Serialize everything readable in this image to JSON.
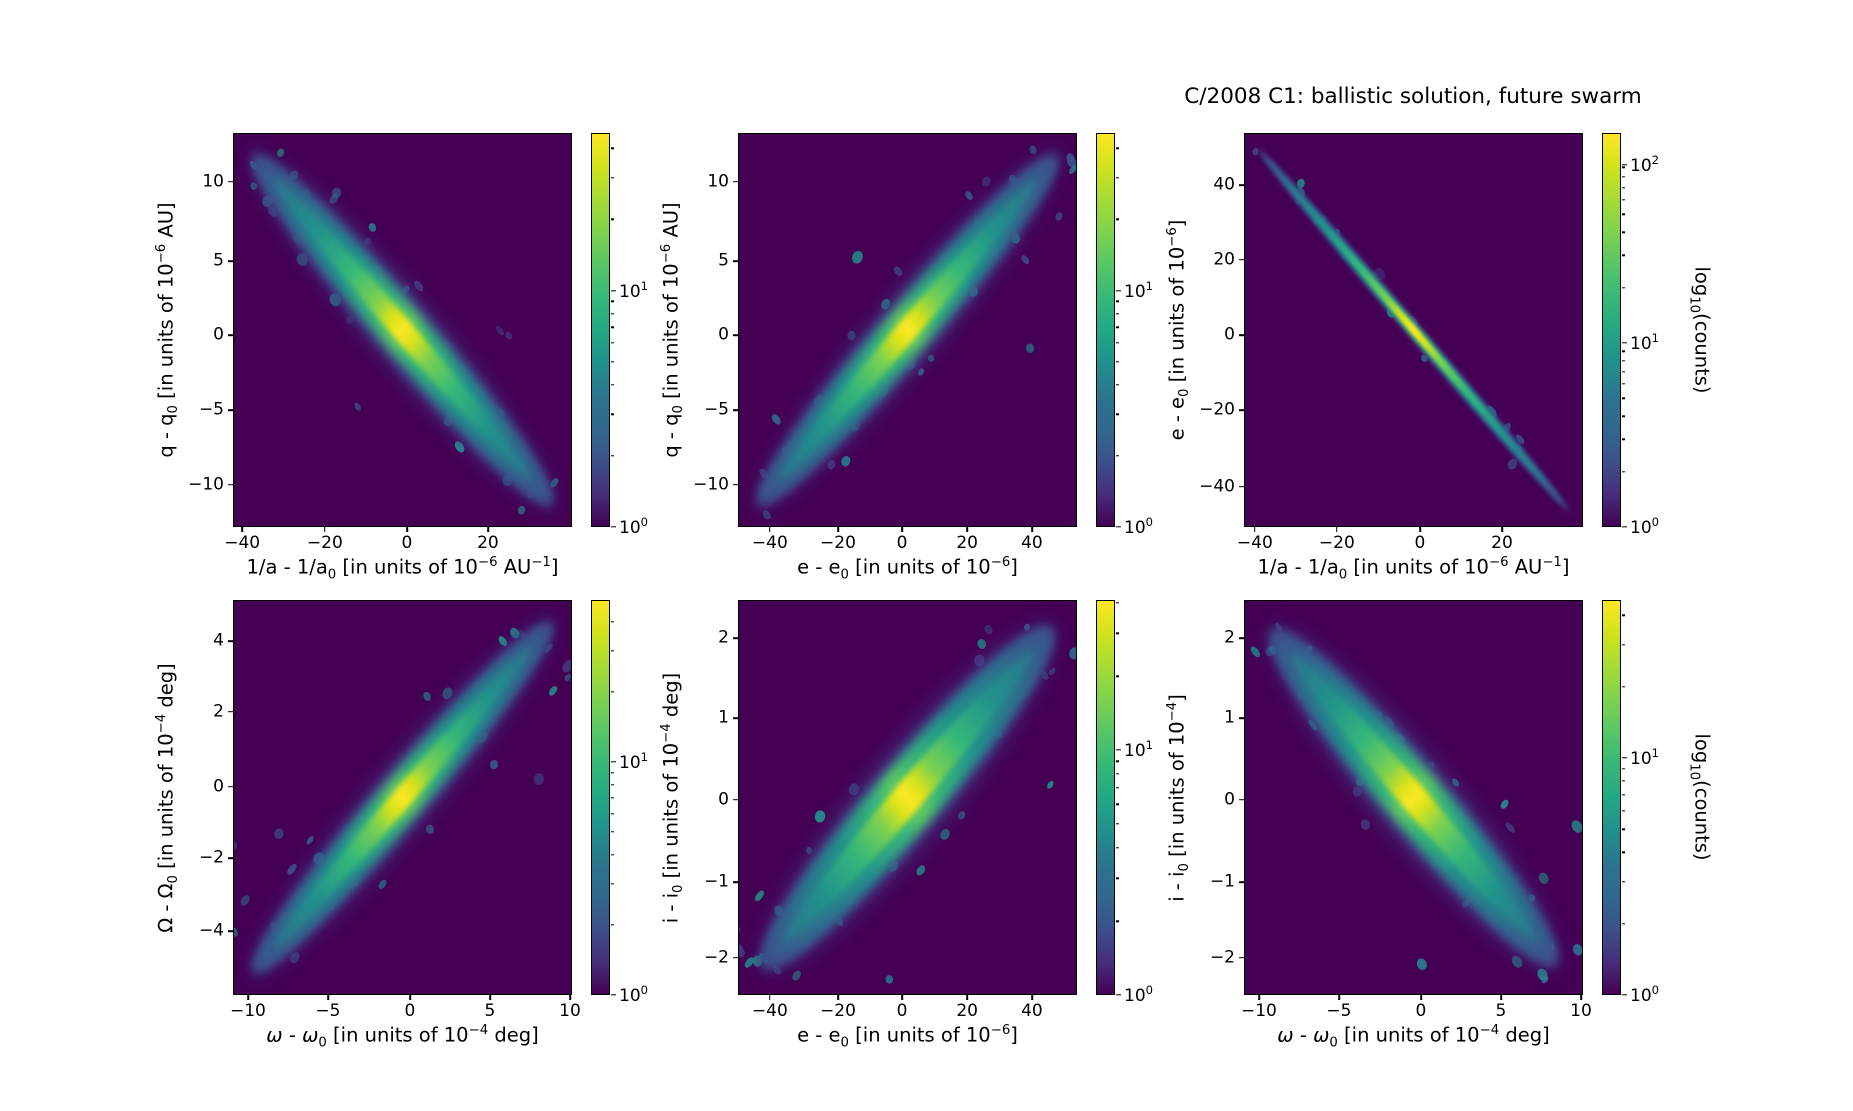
{
  "figure": {
    "title": "C/2008 C1: ballistic solution, future swarm",
    "background_color": "#ffffff",
    "plot_background_color": "#440154",
    "colormap": "viridis",
    "colorbar_label": "log10(counts)",
    "colorbar_label_parts": [
      {
        "t": "log"
      },
      {
        "s": "10"
      },
      {
        "t": "(counts)"
      }
    ]
  },
  "chart_data": {
    "type": "hexbin",
    "layout": "2x3 grid of hexbin density panels, each with its own vertical viridis colorbar",
    "count_scale": "log10",
    "colorbar_label": "log10(counts)",
    "panels": [
      {
        "name": "q-q0 vs 1/a-1/a0",
        "row": 0,
        "col": 0,
        "xlabel": "1/a - 1/a0 [in units of 10^-6 AU^-1]",
        "ylabel": "q - q0 [in units of 10^-6 AU]",
        "xlabel_parts": [
          {
            "t": "1/a - 1/a"
          },
          {
            "s": "0"
          },
          {
            "t": " [in units of 10"
          },
          {
            "p": "−6"
          },
          {
            "t": " AU"
          },
          {
            "p": "−1"
          },
          {
            "t": "]"
          }
        ],
        "ylabel_parts": [
          {
            "t": "q - q"
          },
          {
            "s": "0"
          },
          {
            "t": " [in units of 10"
          },
          {
            "p": "−6"
          },
          {
            "t": " AU]"
          }
        ],
        "xlim": [
          -42,
          40
        ],
        "ylim": [
          -13,
          13
        ],
        "xticks": [
          {
            "v": "−40",
            "f": 0.027
          },
          {
            "v": "−20",
            "f": 0.271
          },
          {
            "v": "0",
            "f": 0.513
          },
          {
            "v": "20",
            "f": 0.752
          }
        ],
        "yticks": [
          {
            "v": "10",
            "f": 0.124
          },
          {
            "v": "5",
            "f": 0.325
          },
          {
            "v": "0",
            "f": 0.513
          },
          {
            "v": "−5",
            "f": 0.703
          },
          {
            "v": "−10",
            "f": 0.893
          }
        ],
        "correlation": "negative",
        "max_count_est": 50,
        "band": {
          "angle": 45,
          "len": 64,
          "core": 3.0,
          "mid": 6.0,
          "outer": 10,
          "speckles": 55,
          "seed": 7,
          "blur": 1
        },
        "colorbar": {
          "ticks": [
            {
              "base": "10",
              "exp": "1",
              "f": 0.4
            },
            {
              "base": "10",
              "exp": "0",
              "f": 1.0
            }
          ]
        }
      },
      {
        "name": "q-q0 vs e-e0",
        "row": 0,
        "col": 1,
        "xlabel": "e - e0 [in units of 10^-6]",
        "ylabel": "q - q0 [in units of 10^-6 AU]",
        "xlabel_parts": [
          {
            "t": "e - e"
          },
          {
            "s": "0"
          },
          {
            "t": " [in units of 10"
          },
          {
            "p": "−6"
          },
          {
            "t": "]"
          }
        ],
        "ylabel_parts": [
          {
            "t": "q - q"
          },
          {
            "s": "0"
          },
          {
            "t": " [in units of 10"
          },
          {
            "p": "−6"
          },
          {
            "t": " AU]"
          }
        ],
        "xlim": [
          -50,
          53
        ],
        "ylim": [
          -13,
          13
        ],
        "xticks": [
          {
            "v": "−40",
            "f": 0.094
          },
          {
            "v": "−20",
            "f": 0.295
          },
          {
            "v": "0",
            "f": 0.484
          },
          {
            "v": "20",
            "f": 0.676
          },
          {
            "v": "40",
            "f": 0.867
          }
        ],
        "yticks": [
          {
            "v": "10",
            "f": 0.124
          },
          {
            "v": "5",
            "f": 0.325
          },
          {
            "v": "0",
            "f": 0.513
          },
          {
            "v": "−5",
            "f": 0.703
          },
          {
            "v": "−10",
            "f": 0.893
          }
        ],
        "correlation": "positive",
        "max_count_est": 50,
        "band": {
          "angle": -45,
          "len": 64,
          "core": 3.0,
          "mid": 6.0,
          "outer": 10,
          "speckles": 55,
          "seed": 13,
          "blur": 1
        },
        "colorbar": {
          "ticks": [
            {
              "base": "10",
              "exp": "1",
              "f": 0.4
            },
            {
              "base": "10",
              "exp": "0",
              "f": 1.0
            }
          ]
        }
      },
      {
        "name": "e-e0 vs 1/a-1/a0",
        "row": 0,
        "col": 2,
        "xlabel": "1/a - 1/a0 [in units of 10^-6 AU^-1]",
        "ylabel": "e - e0 [in units of 10^-6]",
        "xlabel_parts": [
          {
            "t": "1/a - 1/a"
          },
          {
            "s": "0"
          },
          {
            "t": " [in units of 10"
          },
          {
            "p": "−6"
          },
          {
            "t": " AU"
          },
          {
            "p": "−1"
          },
          {
            "t": "]"
          }
        ],
        "ylabel_parts": [
          {
            "t": "e - e"
          },
          {
            "s": "0"
          },
          {
            "t": " [in units of 10"
          },
          {
            "p": "−6"
          },
          {
            "t": "]"
          }
        ],
        "xlim": [
          -42,
          40
        ],
        "ylim": [
          -52,
          52
        ],
        "xticks": [
          {
            "v": "−40",
            "f": 0.032
          },
          {
            "v": "−20",
            "f": 0.274
          },
          {
            "v": "0",
            "f": 0.519
          },
          {
            "v": "20",
            "f": 0.761
          }
        ],
        "yticks": [
          {
            "v": "40",
            "f": 0.132
          },
          {
            "v": "20",
            "f": 0.322
          },
          {
            "v": "0",
            "f": 0.513
          },
          {
            "v": "−20",
            "f": 0.703
          },
          {
            "v": "−40",
            "f": 0.898
          }
        ],
        "correlation": "negative",
        "max_count_est": 160,
        "band": {
          "angle": 45,
          "len": 66,
          "core": 0.9,
          "mid": 1.5,
          "outer": 2.2,
          "speckles": 22,
          "seed": 21,
          "blur": 0.45
        },
        "colorbar": {
          "ticks": [
            {
              "base": "10",
              "exp": "2",
              "f": 0.081
            },
            {
              "base": "10",
              "exp": "1",
              "f": 0.533
            },
            {
              "base": "10",
              "exp": "0",
              "f": 1.0
            }
          ]
        }
      },
      {
        "name": "Omega-Omega0 vs omega-omega0",
        "row": 1,
        "col": 0,
        "xlabel": "omega - omega0 [in units of 10^-4 deg]",
        "ylabel": "Omega - Omega0 [in units of 10^-4 deg]",
        "xlabel_parts": [
          {
            "i": "ω"
          },
          {
            "t": " - "
          },
          {
            "i": "ω"
          },
          {
            "s": "0"
          },
          {
            "t": " [in units of 10"
          },
          {
            "p": "−4"
          },
          {
            "t": " deg]"
          }
        ],
        "ylabel_parts": [
          {
            "t": "Ω - Ω"
          },
          {
            "s": "0"
          },
          {
            "t": " [in units of 10"
          },
          {
            "p": "−4"
          },
          {
            "t": " deg]"
          }
        ],
        "xlim": [
          -11,
          10.2
        ],
        "ylim": [
          -5.6,
          5.1
        ],
        "xticks": [
          {
            "v": "−10",
            "f": 0.044
          },
          {
            "v": "−5",
            "f": 0.28
          },
          {
            "v": "0",
            "f": 0.522
          },
          {
            "v": "5",
            "f": 0.758
          },
          {
            "v": "10",
            "f": 0.994
          }
        ],
        "yticks": [
          {
            "v": "4",
            "f": 0.104
          },
          {
            "v": "2",
            "f": 0.283
          },
          {
            "v": "0",
            "f": 0.473
          },
          {
            "v": "−2",
            "f": 0.653
          },
          {
            "v": "−4",
            "f": 0.838
          }
        ],
        "correlation": "positive",
        "max_count_est": 40,
        "band": {
          "angle": -45,
          "len": 64,
          "core": 2.8,
          "mid": 5.6,
          "outer": 9.4,
          "speckles": 50,
          "seed": 31,
          "blur": 1
        },
        "colorbar": {
          "ticks": [
            {
              "base": "10",
              "exp": "1",
              "f": 0.41
            },
            {
              "base": "10",
              "exp": "0",
              "f": 1.0
            }
          ]
        }
      },
      {
        "name": "i-i0 vs e-e0",
        "row": 1,
        "col": 1,
        "xlabel": "e - e0 [in units of 10^-6]",
        "ylabel": "i - i0 [in units of 10^-4 deg]",
        "xlabel_parts": [
          {
            "t": "e - e"
          },
          {
            "s": "0"
          },
          {
            "t": " [in units of 10"
          },
          {
            "p": "−6"
          },
          {
            "t": "]"
          }
        ],
        "ylabel_parts": [
          {
            "t": "i - i"
          },
          {
            "s": "0"
          },
          {
            "t": " [in units of 10"
          },
          {
            "p": "−4"
          },
          {
            "t": " deg]"
          }
        ],
        "xlim": [
          -50,
          53
        ],
        "ylim": [
          -2.4,
          2.4
        ],
        "xticks": [
          {
            "v": "−40",
            "f": 0.094
          },
          {
            "v": "−20",
            "f": 0.295
          },
          {
            "v": "0",
            "f": 0.484
          },
          {
            "v": "20",
            "f": 0.676
          },
          {
            "v": "40",
            "f": 0.867
          }
        ],
        "yticks": [
          {
            "v": "2",
            "f": 0.096
          },
          {
            "v": "1",
            "f": 0.299
          },
          {
            "v": "0",
            "f": 0.506
          },
          {
            "v": "−1",
            "f": 0.714
          },
          {
            "v": "−2",
            "f": 0.906
          }
        ],
        "correlation": "positive",
        "max_count_est": 40,
        "band": {
          "angle": -45,
          "len": 62,
          "core": 4.2,
          "mid": 8.5,
          "outer": 13,
          "speckles": 60,
          "seed": 41,
          "blur": 1
        },
        "colorbar": {
          "ticks": [
            {
              "base": "10",
              "exp": "1",
              "f": 0.38
            },
            {
              "base": "10",
              "exp": "0",
              "f": 1.0
            }
          ]
        }
      },
      {
        "name": "i-i0 vs omega-omega0",
        "row": 1,
        "col": 2,
        "xlabel": "omega - omega0 [in units of 10^-4 deg]",
        "ylabel": "i - i0 [in units of 10^-4]",
        "xlabel_parts": [
          {
            "i": "ω"
          },
          {
            "t": " - "
          },
          {
            "i": "ω"
          },
          {
            "s": "0"
          },
          {
            "t": " [in units of 10"
          },
          {
            "p": "−4"
          },
          {
            "t": " deg]"
          }
        ],
        "ylabel_parts": [
          {
            "t": "i - i"
          },
          {
            "s": "0"
          },
          {
            "t": " [in units of 10"
          },
          {
            "p": "−4"
          },
          {
            "t": "]"
          }
        ],
        "xlim": [
          -11,
          10.2
        ],
        "ylim": [
          -2.4,
          2.4
        ],
        "xticks": [
          {
            "v": "−10",
            "f": 0.044
          },
          {
            "v": "−5",
            "f": 0.28
          },
          {
            "v": "0",
            "f": 0.522
          },
          {
            "v": "5",
            "f": 0.758
          },
          {
            "v": "10",
            "f": 0.994
          }
        ],
        "yticks": [
          {
            "v": "2",
            "f": 0.096
          },
          {
            "v": "1",
            "f": 0.299
          },
          {
            "v": "0",
            "f": 0.506
          },
          {
            "v": "−1",
            "f": 0.714
          },
          {
            "v": "−2",
            "f": 0.906
          }
        ],
        "correlation": "negative",
        "max_count_est": 40,
        "band": {
          "angle": 45,
          "len": 61,
          "core": 3.8,
          "mid": 7.6,
          "outer": 12,
          "speckles": 55,
          "seed": 53,
          "blur": 1
        },
        "colorbar": {
          "ticks": [
            {
              "base": "10",
              "exp": "1",
              "f": 0.4
            },
            {
              "base": "10",
              "exp": "0",
              "f": 1.0
            }
          ]
        }
      }
    ],
    "colors": {
      "viridis_min": "#440154",
      "viridis_mid": "#21918c",
      "viridis_max": "#fde725"
    }
  }
}
